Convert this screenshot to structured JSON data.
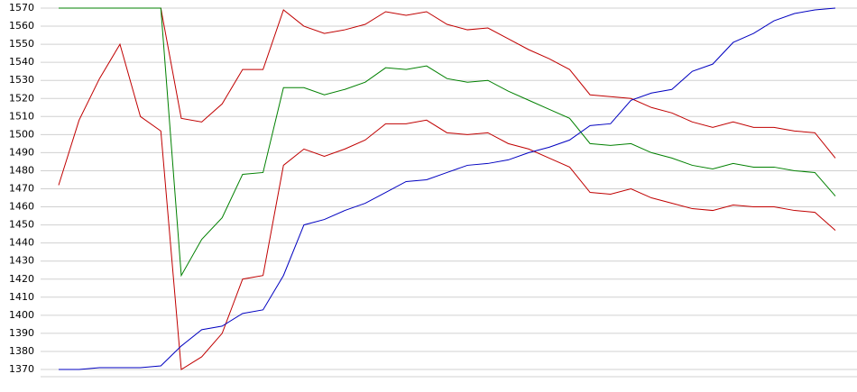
{
  "chart_data": {
    "type": "line",
    "series": [
      {
        "color": "#c00000",
        "values": [
          1570,
          1570,
          1570,
          1570,
          1570,
          1570,
          1509,
          1507,
          1517,
          1536,
          1536,
          1569,
          1560,
          1556,
          1558,
          1561,
          1568,
          1566,
          1568,
          1561,
          1558,
          1559,
          1553,
          1547,
          1542,
          1536,
          1522,
          1521,
          1520,
          1515,
          1512,
          1507,
          1504,
          1507,
          1504,
          1504,
          1502,
          1501,
          1487
        ]
      },
      {
        "color": "#008000",
        "values": [
          1570,
          1570,
          1570,
          1570,
          1570,
          1570,
          1422,
          1442,
          1454,
          1478,
          1479,
          1526,
          1526,
          1522,
          1525,
          1529,
          1537,
          1536,
          1538,
          1531,
          1529,
          1530,
          1524,
          1519,
          1514,
          1509,
          1495,
          1494,
          1495,
          1490,
          1487,
          1483,
          1481,
          1484,
          1482,
          1482,
          1480,
          1479,
          1466
        ]
      },
      {
        "color": "#c00000",
        "values": [
          1472,
          1508,
          1531,
          1550,
          1510,
          1502,
          1370,
          1377,
          1390,
          1420,
          1422,
          1483,
          1492,
          1488,
          1492,
          1497,
          1506,
          1506,
          1508,
          1501,
          1500,
          1501,
          1495,
          1492,
          1487,
          1482,
          1468,
          1467,
          1470,
          1465,
          1462,
          1459,
          1458,
          1461,
          1460,
          1460,
          1458,
          1457,
          1447
        ]
      },
      {
        "color": "#0000c0",
        "values": [
          1370,
          1370,
          1371,
          1371,
          1371,
          1372,
          1383,
          1392,
          1394,
          1401,
          1403,
          1422,
          1450,
          1453,
          1458,
          1462,
          1468,
          1474,
          1475,
          1479,
          1483,
          1484,
          1486,
          1490,
          1493,
          1497,
          1505,
          1506,
          1519,
          1523,
          1525,
          1535,
          1539,
          1551,
          1556,
          1563,
          1567,
          1569,
          1570
        ]
      }
    ],
    "ylim": [
      1370,
      1570
    ],
    "yticks": [
      1370,
      1380,
      1390,
      1400,
      1410,
      1420,
      1430,
      1440,
      1450,
      1460,
      1470,
      1480,
      1490,
      1500,
      1510,
      1520,
      1530,
      1540,
      1550,
      1560,
      1570
    ],
    "grid": true
  }
}
